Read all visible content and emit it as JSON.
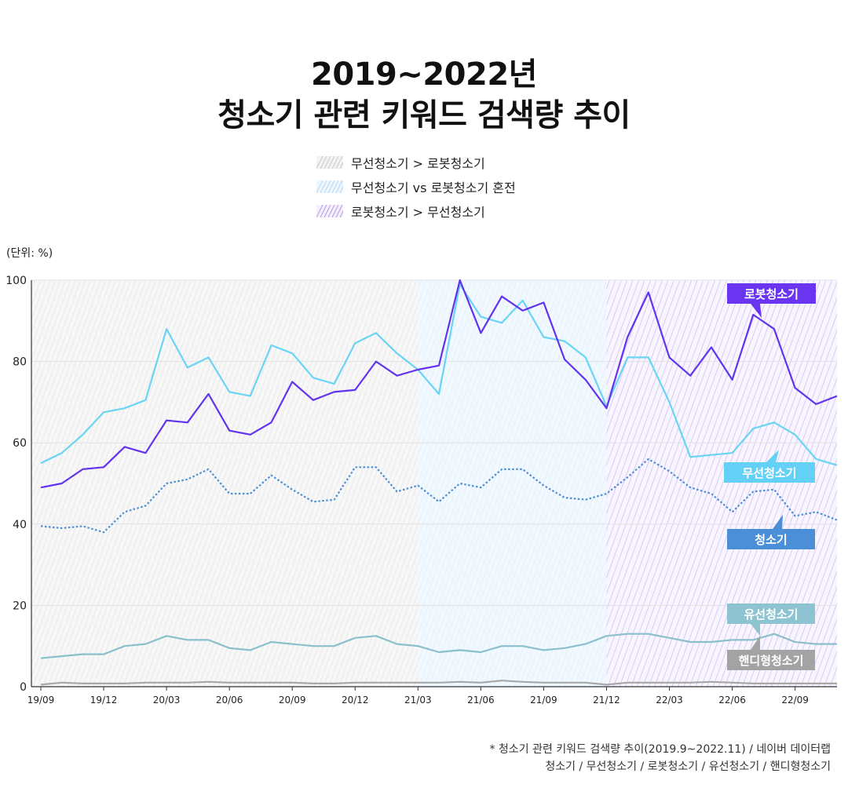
{
  "title": {
    "line1": "2019~2022년",
    "line2": "청소기 관련 키워드 검색량 추이"
  },
  "legend": [
    {
      "label": "무선청소기 > 로봇청소기",
      "color": "#c8c8c8"
    },
    {
      "label": "무선청소기 vs 로봇청소기 혼전",
      "color": "#9ec8f0"
    },
    {
      "label": "로봇청소기 > 무선청소기",
      "color": "#a98be6"
    }
  ],
  "unit_label": "(단위: %)",
  "footnote": {
    "line1": "* 청소기 관련 키워드 검색량 추이(2019.9~2022.11) / 네이버 데이터랩",
    "line2": "청소기 / 무선청소기 / 로봇청소기 / 유선청소기 / 핸디형청소기"
  },
  "chart_data": {
    "type": "line",
    "x": [
      "19/09",
      "19/10",
      "19/11",
      "19/12",
      "20/01",
      "20/02",
      "20/03",
      "20/04",
      "20/05",
      "20/06",
      "20/07",
      "20/08",
      "20/09",
      "20/10",
      "20/11",
      "20/12",
      "21/01",
      "21/02",
      "21/03",
      "21/04",
      "21/05",
      "21/06",
      "21/07",
      "21/08",
      "21/09",
      "21/10",
      "21/11",
      "21/12",
      "22/01",
      "22/02",
      "22/03",
      "22/04",
      "22/05",
      "22/06",
      "22/07",
      "22/08",
      "22/09",
      "22/10",
      "22/11"
    ],
    "x_tick_labels": [
      "19/09",
      "19/12",
      "20/03",
      "20/06",
      "20/09",
      "20/12",
      "21/03",
      "21/06",
      "21/09",
      "21/12",
      "22/03",
      "22/06",
      "22/09"
    ],
    "y_ticks": [
      0,
      20,
      40,
      60,
      80,
      100
    ],
    "ylim": [
      0,
      100
    ],
    "grid": true,
    "regions": [
      {
        "label": "무선청소기 > 로봇청소기",
        "from": "19/09",
        "to": "21/03"
      },
      {
        "label": "무선청소기 vs 로봇청소기 혼전",
        "from": "21/03",
        "to": "21/12"
      },
      {
        "label": "로봇청소기 > 무선청소기",
        "from": "21/12",
        "to": "22/11"
      }
    ],
    "series": [
      {
        "name": "로봇청소기",
        "color": "#6233ee",
        "style": "solid",
        "label_bg": "#6a35f0",
        "values": [
          49,
          50,
          53.5,
          54,
          59,
          57.5,
          65.5,
          65,
          72,
          63,
          62,
          65,
          75,
          70.5,
          72.5,
          73,
          80,
          76.5,
          78,
          79,
          100,
          87,
          96,
          92.5,
          94.5,
          80.5,
          75.5,
          68.5,
          86,
          97,
          81,
          76.5,
          83.5,
          75.5,
          91.5,
          88,
          73.5,
          69.5,
          71.5
        ]
      },
      {
        "name": "무선청소기",
        "color": "#6ad4f4",
        "style": "solid",
        "label_bg": "#63d0f6",
        "values": [
          55,
          57.5,
          62,
          67.5,
          68.5,
          70.5,
          88,
          78.5,
          81,
          72.5,
          71.5,
          84,
          82,
          76,
          74.5,
          84.5,
          87,
          82,
          78,
          72,
          99,
          91,
          89.5,
          95,
          86,
          85,
          81,
          69,
          81,
          81,
          70,
          56.5,
          57,
          57.5,
          63.5,
          65,
          62,
          56,
          54.5
        ]
      },
      {
        "name": "청소기",
        "color": "#4d8fd6",
        "style": "dotted",
        "label_bg": "#4a8fd7",
        "values": [
          39.5,
          39,
          39.5,
          38,
          43,
          44.5,
          50,
          51,
          53.5,
          47.5,
          47.5,
          52,
          48.5,
          45.5,
          46,
          54,
          54,
          48,
          49.5,
          45.5,
          50,
          49,
          53.5,
          53.5,
          49.5,
          46.5,
          46,
          47.5,
          51.5,
          56,
          53,
          49,
          47.5,
          43,
          48,
          48.5,
          42,
          43,
          41
        ]
      },
      {
        "name": "유선청소기",
        "color": "#8ac0cc",
        "style": "solid",
        "label_bg": "#8ec4d2",
        "values": [
          7,
          7.5,
          8,
          8,
          10,
          10.5,
          12.5,
          11.5,
          11.5,
          9.5,
          9,
          11,
          10.5,
          10,
          10,
          12,
          12.5,
          10.5,
          10,
          8.5,
          9,
          8.5,
          10,
          10,
          9,
          9.5,
          10.5,
          12.5,
          13,
          13,
          12,
          11,
          11,
          11.5,
          11.5,
          13,
          11,
          10.5,
          10.5
        ]
      },
      {
        "name": "핸디형청소기",
        "color": "#a8a8a8",
        "style": "solid",
        "label_bg": "#a3a3a3",
        "values": [
          0.5,
          1,
          0.8,
          0.8,
          0.8,
          1,
          1,
          1,
          1.2,
          1,
          1,
          1,
          1,
          0.8,
          0.8,
          1,
          1,
          1,
          1,
          1,
          1.2,
          1,
          1.5,
          1.2,
          1,
          1,
          1,
          0.5,
          1,
          1,
          1,
          1,
          1.2,
          1,
          0.8,
          0.8,
          0.8,
          0.8,
          0.8
        ]
      }
    ]
  }
}
